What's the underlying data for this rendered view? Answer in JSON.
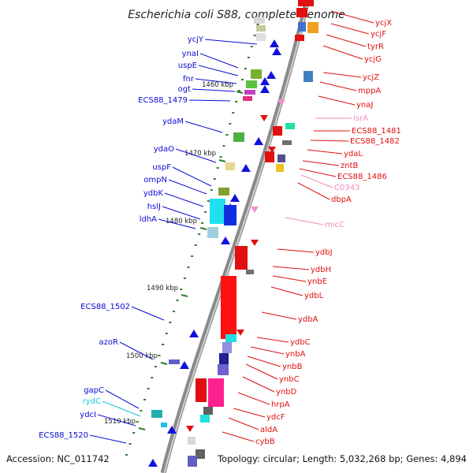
{
  "title": "Escherichia coli S88, complete genome",
  "footer": {
    "accession": "Accession: NC_011742",
    "topology": "Topology: circular; Length: 5,032,268 bp; Genes: 4,894"
  },
  "colors": {
    "backbone": "#8a8a8a",
    "scale_tick": "#2e7d32",
    "left_label": "#0a0ad6",
    "right_label": "#e01010",
    "rna_label": "#f08cc0",
    "cyan_label": "#19c4e0"
  },
  "scale_marks": [
    "1460 kbp",
    "1470 kbp",
    "1480 kbp",
    "1490 kbp",
    "1500 kbp",
    "1510 kbp"
  ],
  "left_genes": [
    "ycjY",
    "ynaI",
    "uspE",
    "fnr",
    "ogt",
    "ECS88_1479",
    "ydaM",
    "ydaO",
    "uspF",
    "ompN",
    "ydbK",
    "hslJ",
    "ldhA",
    "ECS88_1502",
    "azoR",
    "gapC",
    "rydC",
    "ydcI",
    "ECS88_1520"
  ],
  "right_genes": [
    "ycjX",
    "ycjF",
    "tyrR",
    "ycjG",
    "ycjZ",
    "mppA",
    "ynaJ",
    "isrA",
    "ECS88_1481",
    "ECS88_1482",
    "ydaL",
    "zntB",
    "ECS88_1486",
    "C0343",
    "dbpA",
    "micC",
    "ydbJ",
    "ydbH",
    "ynbE",
    "ydbL",
    "ydbA",
    "ydbC",
    "ynbA",
    "ynbB",
    "ynbC",
    "ynbD",
    "hrpA",
    "ydcF",
    "aldA",
    "cybB"
  ]
}
